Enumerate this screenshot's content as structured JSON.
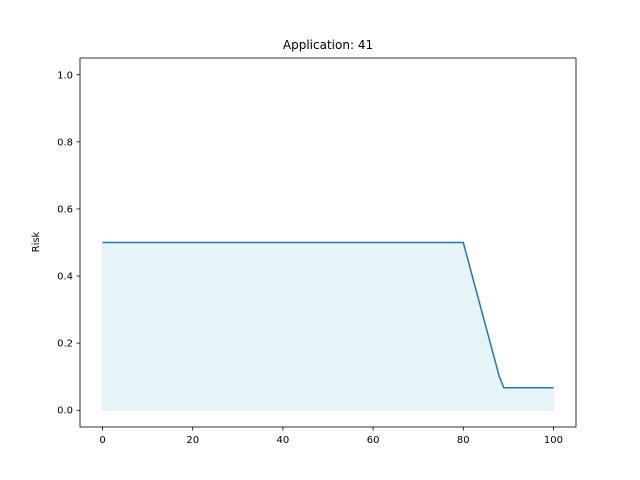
{
  "chart_data": {
    "type": "area",
    "title": "Application: 41",
    "xlabel": "",
    "ylabel": "Risk",
    "xlim": [
      -5,
      105
    ],
    "ylim": [
      -0.05,
      1.05
    ],
    "xticks": [
      0,
      20,
      40,
      60,
      80,
      100
    ],
    "yticks": [
      0.0,
      0.2,
      0.4,
      0.6,
      0.8,
      1.0
    ],
    "xtick_labels": [
      "0",
      "20",
      "40",
      "60",
      "80",
      "100"
    ],
    "ytick_labels": [
      "0.0",
      "0.2",
      "0.4",
      "0.6",
      "0.8",
      "1.0"
    ],
    "grid": false,
    "series": [
      {
        "x": [
          0,
          80,
          88,
          89,
          100
        ],
        "y": [
          0.5,
          0.5,
          0.1,
          0.067,
          0.067
        ],
        "line_color": "#1f77b4",
        "fill_color": "#add8e6",
        "fill_opacity": 0.3
      }
    ]
  }
}
